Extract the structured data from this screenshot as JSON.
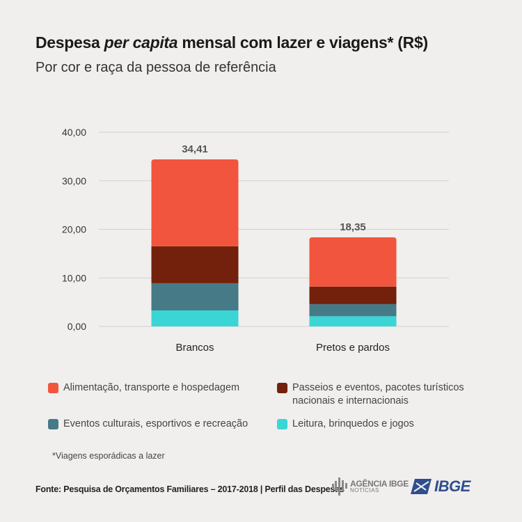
{
  "header": {
    "title_pre": "Despesa ",
    "title_em": "per capita",
    "title_post": " mensal com lazer e viagens* (R$)",
    "subtitle": "Por cor e raça da pessoa de referência"
  },
  "chart_data": {
    "type": "bar",
    "stacked": true,
    "categories": [
      "Brancos",
      "Pretos e pardos"
    ],
    "totals": [
      34.41,
      18.35
    ],
    "total_labels": [
      "34,41",
      "18,35"
    ],
    "series": [
      {
        "name": "Leitura, brinquedos e jogos",
        "color": "#3ad6d6",
        "values": [
          3.3,
          2.1
        ]
      },
      {
        "name": "Eventos culturais, esportivos e recreação",
        "color": "#467a87",
        "values": [
          5.6,
          2.5
        ]
      },
      {
        "name": "Passeios e eventos, pacotes turísticos nacionais e internacionais",
        "color": "#73210c",
        "values": [
          7.6,
          3.6
        ]
      },
      {
        "name": "Alimentação, transporte e hospedagem",
        "color": "#f2553d",
        "values": [
          17.91,
          10.15
        ]
      }
    ],
    "ylim": [
      0,
      40
    ],
    "yticks": [
      0,
      10,
      20,
      30,
      40
    ],
    "ytick_labels": [
      "0,00",
      "10,00",
      "20,00",
      "30,00",
      "40,00"
    ],
    "grid": true
  },
  "legend": [
    {
      "label": "Alimentação, transporte e hospedagem",
      "color": "#f2553d"
    },
    {
      "label": "Passeios e eventos, pacotes turísticos nacionais e internacionais",
      "color": "#73210c"
    },
    {
      "label": "Eventos culturais, esportivos e recreação",
      "color": "#467a87"
    },
    {
      "label": "Leitura, brinquedos e jogos",
      "color": "#3ad6d6"
    }
  ],
  "footnote": "*Viagens esporádicas a lazer",
  "source": "Fonte: Pesquisa de Orçamentos Familiares – 2017-2018  |  Perfil das Despesas",
  "branding": {
    "agencia_line1": "AGÊNCIA IBGE",
    "agencia_line2": "NOTÍCIAS",
    "ibge_word": "IBGE"
  }
}
